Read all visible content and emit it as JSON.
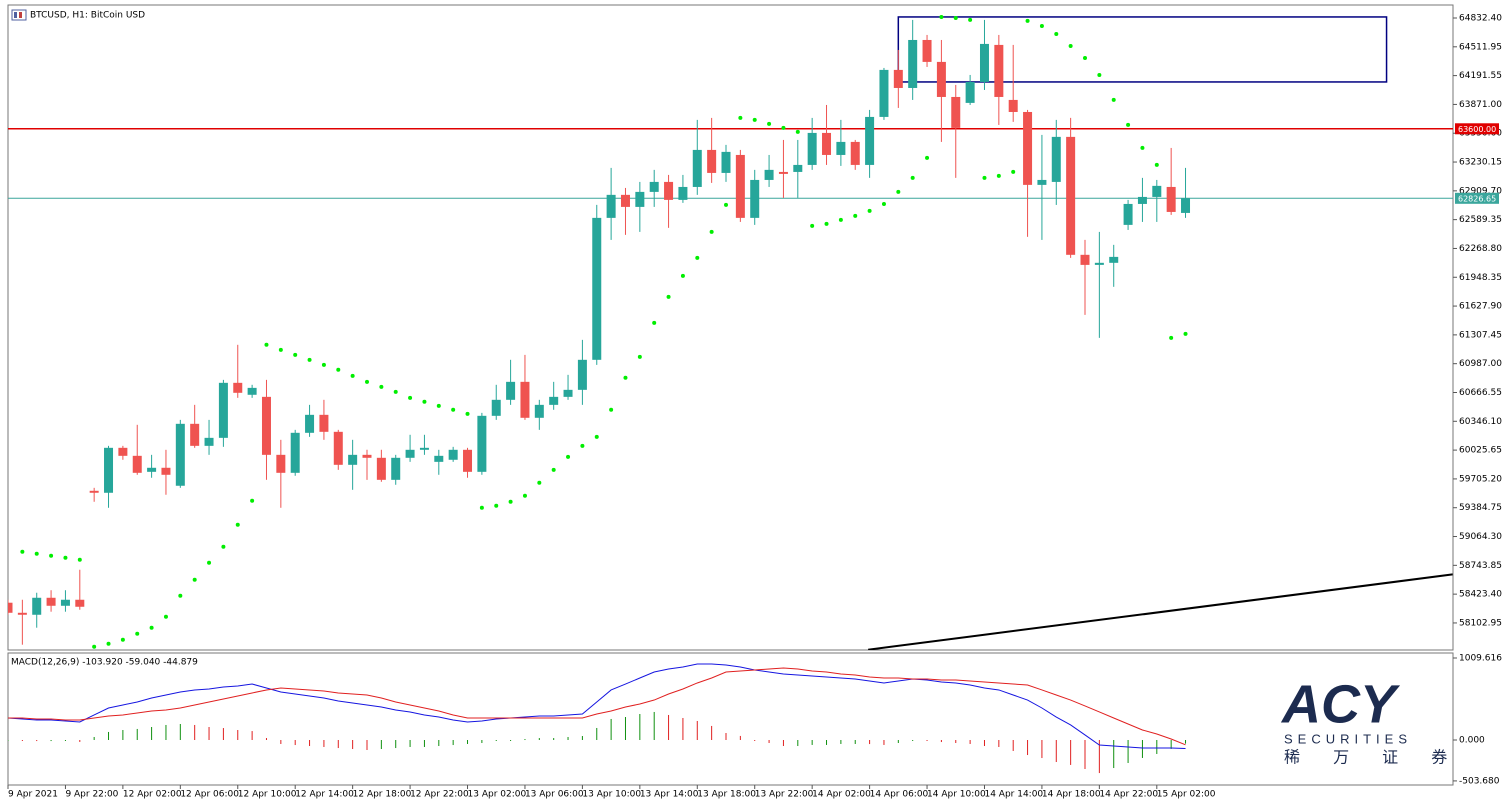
{
  "chart_data": [
    {
      "type": "candlestick",
      "title": "BTCUSD, H1:  BitCoin USD",
      "categories": [
        "9 Apr 2021",
        null,
        null,
        null,
        "9 Apr 22:00",
        null,
        null,
        null,
        "12 Apr 02:00",
        null,
        null,
        null,
        "12 Apr 06:00",
        null,
        null,
        null,
        "12 Apr 10:00",
        null,
        null,
        null,
        "12 Apr 14:00",
        null,
        null,
        null,
        "12 Apr 18:00",
        null,
        null,
        null,
        "12 Apr 22:00",
        null,
        null,
        null,
        "13 Apr 02:00",
        null,
        null,
        null,
        "13 Apr 06:00",
        null,
        null,
        null,
        "13 Apr 10:00",
        null,
        null,
        null,
        "13 Apr 14:00",
        null,
        null,
        null,
        "13 Apr 18:00",
        null,
        null,
        null,
        "13 Apr 22:00",
        null,
        null,
        null,
        "14 Apr 02:00",
        null,
        null,
        null,
        "14 Apr 06:00",
        null,
        null,
        null,
        "14 Apr 10:00",
        null,
        null,
        null,
        "14 Apr 14:00",
        null,
        null,
        null,
        "14 Apr 18:00",
        null,
        null,
        null,
        "14 Apr 22:00",
        null,
        null,
        null,
        "15 Apr 02:00",
        null,
        null
      ],
      "open": [
        58328,
        58216,
        58194,
        58383,
        58294,
        58361,
        59573,
        59551,
        60051,
        59962,
        59784,
        59829,
        59629,
        60318,
        60073,
        60162,
        60774,
        60641,
        60618,
        59973,
        59773,
        60218,
        60418,
        60229,
        59862,
        59973,
        59940,
        59695,
        59940,
        60029,
        59895,
        59918,
        60029,
        59784,
        60407,
        60585,
        60785,
        60385,
        60529,
        60618,
        60696,
        61030,
        62609,
        62865,
        62731,
        62898,
        63009,
        62809,
        62953,
        63365,
        63109,
        63309,
        62609,
        63031,
        63120,
        63120,
        63198,
        63554,
        63309,
        63454,
        63198,
        63732,
        64255,
        64054,
        64588,
        64344,
        63954,
        63888,
        64121,
        64533,
        63921,
        63787,
        62976,
        63009,
        63510,
        62198,
        62086,
        62109,
        62531,
        62764,
        62842,
        62953,
        62664
      ],
      "high": [
        58361,
        58361,
        58439,
        58467,
        58467,
        58695,
        59606,
        60073,
        60073,
        60307,
        59973,
        60029,
        60362,
        60529,
        60362,
        60807,
        61197,
        60752,
        60807,
        60140,
        60251,
        60529,
        60585,
        60251,
        60140,
        60029,
        60029,
        59973,
        60196,
        60196,
        60029,
        60062,
        60051,
        60440,
        60752,
        61030,
        61085,
        60585,
        60785,
        60863,
        61252,
        62753,
        63165,
        62942,
        63009,
        63143,
        63087,
        63087,
        63699,
        63721,
        63421,
        63365,
        63143,
        63309,
        63476,
        63476,
        63721,
        63865,
        63699,
        63476,
        63810,
        64277,
        64477,
        64811,
        64644,
        64588,
        64088,
        64199,
        64811,
        64644,
        64533,
        63810,
        63532,
        63699,
        63721,
        62364,
        62453,
        62309,
        62809,
        63054,
        63031,
        63387,
        63165
      ],
      "low": [
        58194,
        57861,
        58050,
        58228,
        58228,
        58250,
        59451,
        59384,
        59918,
        59751,
        59718,
        59529,
        59606,
        60051,
        59973,
        60062,
        60607,
        60607,
        59695,
        59384,
        59740,
        60173,
        60140,
        59806,
        59584,
        59695,
        59673,
        59640,
        59895,
        59973,
        59751,
        59895,
        59718,
        59751,
        60362,
        60529,
        60362,
        60251,
        60474,
        60585,
        60529,
        60974,
        62364,
        62420,
        62453,
        62731,
        62498,
        62776,
        62865,
        62998,
        63009,
        62564,
        62531,
        62953,
        62831,
        62831,
        63143,
        63198,
        63187,
        63143,
        63054,
        63699,
        63832,
        63921,
        64288,
        63454,
        63054,
        63865,
        64032,
        63643,
        63677,
        62398,
        62364,
        62753,
        62164,
        61530,
        61274,
        61842,
        62475,
        62564,
        62564,
        62642,
        62609
      ],
      "close": [
        58216,
        58194,
        58383,
        58294,
        58361,
        58283,
        59551,
        60051,
        59962,
        59773,
        59829,
        59751,
        60318,
        60073,
        60162,
        60774,
        60663,
        60718,
        59973,
        59773,
        60218,
        60418,
        60229,
        59862,
        59973,
        59940,
        59695,
        59940,
        60029,
        60051,
        59962,
        60029,
        59784,
        60407,
        60585,
        60785,
        60385,
        60529,
        60618,
        60696,
        61030,
        62609,
        62865,
        62731,
        62898,
        63009,
        62809,
        62953,
        63365,
        63109,
        63343,
        62609,
        63031,
        63143,
        63098,
        63198,
        63554,
        63309,
        63454,
        63198,
        63732,
        64255,
        64054,
        64588,
        64344,
        63954,
        63610,
        64121,
        64544,
        63954,
        63787,
        62976,
        63031,
        63510,
        62198,
        62086,
        62109,
        62175,
        62764,
        62842,
        62965,
        62675,
        62826.65
      ],
      "sar_values": [
        null,
        58895,
        58873,
        58851,
        58828,
        58806,
        57838,
        57872,
        57916,
        57983,
        58050,
        58172,
        58405,
        58583,
        58772,
        58950,
        59195,
        59462,
        61197,
        61141,
        61085,
        61030,
        60974,
        60919,
        60852,
        60785,
        60729,
        60674,
        60607,
        60563,
        60518,
        60474,
        60429,
        59384,
        59406,
        59451,
        59518,
        59662,
        59806,
        59951,
        60073,
        60173,
        60474,
        60830,
        61063,
        61441,
        61730,
        61964,
        62164,
        62453,
        62753,
        63721,
        63699,
        63654,
        63610,
        63565,
        62520,
        62542,
        62587,
        62631,
        62687,
        62764,
        62898,
        63054,
        63276,
        64844,
        64833,
        64811,
        63054,
        63076,
        63120,
        64800,
        64744,
        64655,
        64521,
        64388,
        64199,
        63921,
        63643,
        63387,
        63198,
        61274,
        61319
      ],
      "up_color": "#26a69a",
      "down_color": "#ef5350",
      "sar_color": "#00ee00",
      "ylim": [
        57802,
        64977
      ],
      "yticks": [
        {
          "value": 64832.4,
          "label": "64832.40"
        },
        {
          "value": 64511.95,
          "label": "64511.95"
        },
        {
          "value": 64191.55,
          "label": "64191.55"
        },
        {
          "value": 63871,
          "label": "63871.00"
        },
        {
          "value": 63550.6,
          "label": "63550.60"
        },
        {
          "value": 63230.15,
          "label": "63230.15"
        },
        {
          "value": 62909.7,
          "label": "62909.70"
        },
        {
          "value": 62589.35,
          "label": "62589.35"
        },
        {
          "value": 62268.8,
          "label": "62268.80"
        },
        {
          "value": 61948.35,
          "label": "61948.35"
        },
        {
          "value": 61627.9,
          "label": "61627.90"
        },
        {
          "value": 61307.45,
          "label": "61307.45"
        },
        {
          "value": 60987,
          "label": "60987.00"
        },
        {
          "value": 60666.55,
          "label": "60666.55"
        },
        {
          "value": 60346.1,
          "label": "60346.10"
        },
        {
          "value": 60025.65,
          "label": "60025.65"
        },
        {
          "value": 59705.2,
          "label": "59705.20"
        },
        {
          "value": 59384.75,
          "label": "59384.75"
        },
        {
          "value": 59064.3,
          "label": "59064.30"
        },
        {
          "value": 58743.85,
          "label": "58743.85"
        },
        {
          "value": 58423.4,
          "label": "58423.40"
        },
        {
          "value": 58102.95,
          "label": "58102.95"
        }
      ],
      "hlines": [
        {
          "value": 63600,
          "label": "63600.00",
          "color": "#e00000"
        },
        {
          "value": 62826.65,
          "label": "62826.65",
          "color": "#3aa69c"
        }
      ],
      "rectangle": {
        "top": 64844,
        "bottom": 64121,
        "x_start": 62,
        "x_end": 96,
        "color": "#000080"
      },
      "trendline": {
        "x": [
          59.9,
          100.6
        ],
        "y": [
          57805,
          58643
        ],
        "color": "#000000"
      }
    },
    {
      "type": "macd",
      "title": "MACD(12,26,9) -103.920 -59.040 -44.879",
      "histogram": [
        0,
        -12,
        -13,
        -13,
        -12,
        -24,
        37,
        99,
        123,
        136,
        160,
        185,
        197,
        185,
        160,
        147,
        123,
        110,
        24,
        -49,
        -62,
        -74,
        -86,
        -99,
        -111,
        -123,
        -111,
        -99,
        -86,
        -86,
        -74,
        -62,
        -49,
        -37,
        -12,
        0,
        12,
        24,
        24,
        37,
        49,
        148,
        259,
        283,
        320,
        345,
        308,
        271,
        234,
        173,
        86,
        50,
        0,
        -37,
        -74,
        -74,
        -61,
        -61,
        -49,
        -49,
        -50,
        -61,
        -37,
        0,
        -12,
        -25,
        -37,
        -49,
        -74,
        -86,
        -135,
        -185,
        -222,
        -271,
        -307,
        -357,
        -407,
        -345,
        -283,
        -221,
        -172,
        -110,
        -44.879
      ],
      "macd": [
        271,
        259,
        246,
        246,
        234,
        222,
        308,
        394,
        431,
        468,
        517,
        554,
        591,
        616,
        628,
        652,
        665,
        689,
        640,
        591,
        566,
        542,
        517,
        480,
        455,
        431,
        406,
        369,
        345,
        308,
        283,
        246,
        222,
        234,
        259,
        271,
        283,
        295,
        295,
        308,
        320,
        468,
        616,
        689,
        763,
        837,
        874,
        899,
        936,
        936,
        923,
        899,
        862,
        837,
        812,
        800,
        788,
        776,
        763,
        751,
        726,
        702,
        726,
        751,
        739,
        714,
        702,
        677,
        640,
        616,
        554,
        492,
        394,
        283,
        185,
        62,
        -62,
        -74,
        -86,
        -98,
        -98,
        -98,
        -103.92
      ],
      "signal": [
        271,
        271,
        259,
        259,
        246,
        246,
        271,
        295,
        308,
        332,
        357,
        369,
        394,
        431,
        468,
        505,
        542,
        579,
        616,
        640,
        628,
        616,
        603,
        579,
        566,
        554,
        517,
        468,
        431,
        394,
        357,
        308,
        271,
        271,
        271,
        271,
        271,
        271,
        271,
        271,
        271,
        320,
        357,
        406,
        443,
        492,
        566,
        628,
        702,
        763,
        837,
        849,
        862,
        874,
        886,
        874,
        849,
        837,
        812,
        800,
        776,
        763,
        763,
        751,
        751,
        739,
        739,
        726,
        714,
        702,
        689,
        677,
        616,
        554,
        492,
        419,
        345,
        271,
        197,
        123,
        74,
        12,
        -59.04
      ],
      "macd_color": "#1515e0",
      "signal_color": "#e02020",
      "rising_color": "#109010",
      "falling_color": "#e02020",
      "ylim": [
        -554,
        1071
      ],
      "yticks": [
        {
          "value": 1009.616,
          "label": "1009.616"
        },
        {
          "value": 0,
          "label": "0.000"
        },
        {
          "value": -503.68,
          "label": "-503.680"
        }
      ]
    }
  ],
  "logo": {
    "name": "ACY",
    "tagline": "SECURITIES",
    "chinese": "稀 万 证 券"
  }
}
